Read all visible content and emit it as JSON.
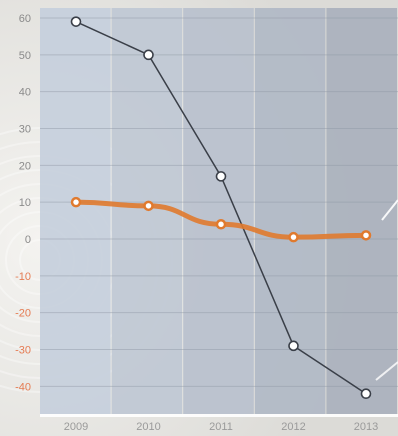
{
  "chart_data": {
    "type": "line",
    "title": "",
    "xlabel": "",
    "ylabel": "",
    "categories": [
      "2009",
      "2010",
      "2011",
      "2012",
      "2013"
    ],
    "ylim": [
      -45,
      62
    ],
    "y_ticks": [
      60,
      50,
      40,
      30,
      20,
      10,
      0,
      -10,
      -20,
      -30,
      -40
    ],
    "grid": true,
    "legend": "none",
    "series": [
      {
        "values": [
          59,
          50,
          17,
          -29,
          -42
        ],
        "color": "#3a3f48"
      },
      {
        "values": [
          10,
          9,
          4,
          0.5,
          1
        ],
        "color": "#e07a2e"
      }
    ],
    "colors": {
      "positive_tick": "#8a8a8a",
      "negative_tick": "#e57b52",
      "band_light": "#c6cfdc",
      "band_dark": "#a9b1bd"
    }
  }
}
